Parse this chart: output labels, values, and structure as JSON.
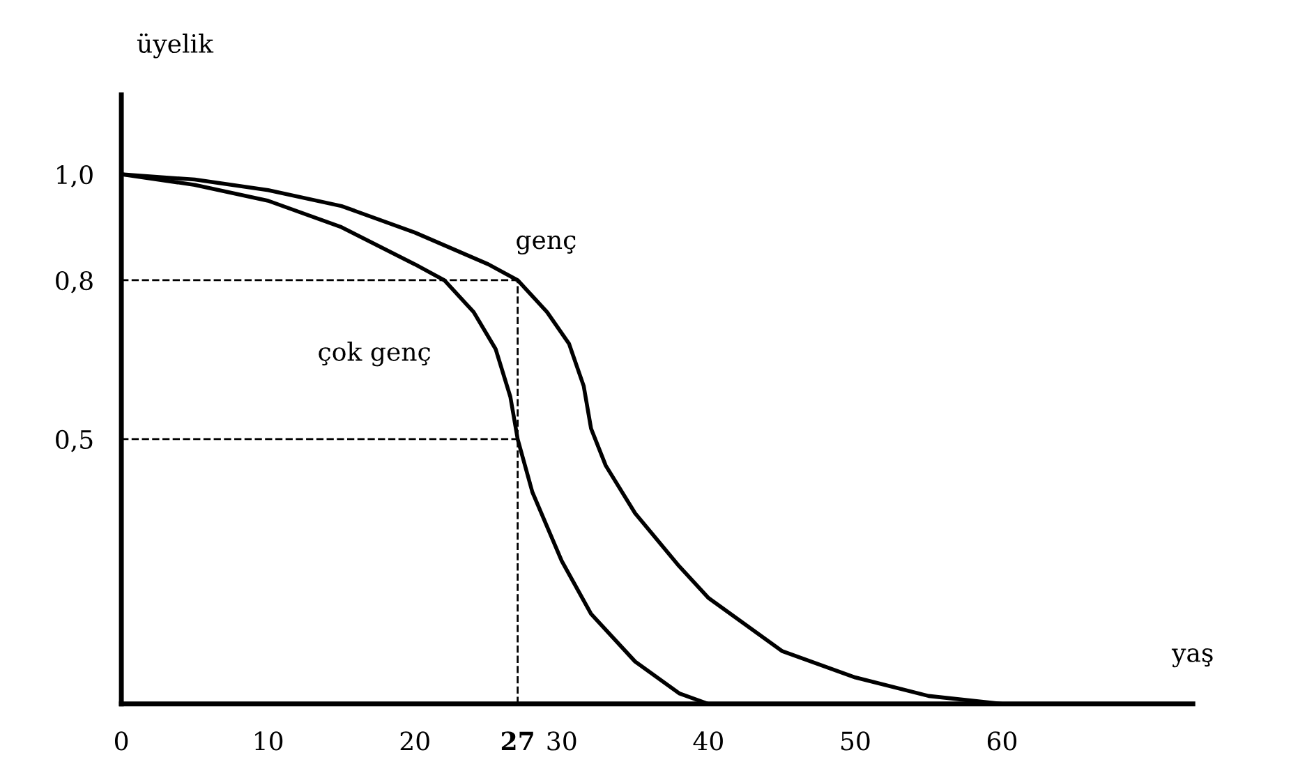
{
  "chart_data": {
    "type": "line",
    "xlabel": "yaş",
    "ylabel": "üyelik",
    "series": [
      {
        "name": "genç",
        "color": "#000000",
        "x": [
          0,
          5,
          10,
          15,
          20,
          25,
          27,
          29,
          30.5,
          31.5,
          32,
          33,
          35,
          38,
          40,
          45,
          50,
          55,
          60
        ],
        "values": [
          1.0,
          0.99,
          0.97,
          0.94,
          0.89,
          0.83,
          0.8,
          0.74,
          0.68,
          0.6,
          0.52,
          0.45,
          0.36,
          0.26,
          0.2,
          0.1,
          0.05,
          0.015,
          0.0
        ]
      },
      {
        "name": "çok genç",
        "color": "#000000",
        "x": [
          0,
          5,
          10,
          15,
          20,
          22,
          24,
          25.5,
          26.5,
          27,
          28,
          30,
          32,
          35,
          38,
          40
        ],
        "values": [
          1.0,
          0.98,
          0.95,
          0.9,
          0.83,
          0.8,
          0.74,
          0.67,
          0.58,
          0.5,
          0.4,
          0.27,
          0.17,
          0.08,
          0.02,
          0.0
        ]
      }
    ],
    "xlim": [
      0,
      73
    ],
    "ylim": [
      0,
      1.15
    ],
    "xticks": [
      0,
      10,
      20,
      27,
      30,
      40,
      50,
      60
    ],
    "yticks": [
      {
        "value": 0.5,
        "label": "0,5"
      },
      {
        "value": 0.8,
        "label": "0,8"
      },
      {
        "value": 1.0,
        "label": "1,0"
      }
    ],
    "ref_lines": [
      {
        "axis": "y",
        "value": 0.8,
        "line_style": "dashed"
      },
      {
        "axis": "y",
        "value": 0.5,
        "line_style": "dashed"
      },
      {
        "axis": "x",
        "value": 27,
        "line_style": "dashed"
      }
    ],
    "grid": false,
    "legend": false,
    "marker": "none",
    "line_style": "solid"
  }
}
